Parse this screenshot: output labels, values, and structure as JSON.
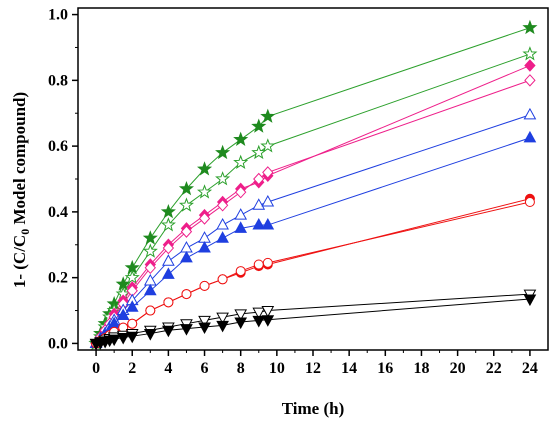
{
  "chart_data": {
    "type": "scatter",
    "xlabel": "Time (h)",
    "ylabel": "1- (C/C",
    "ylabel_sub": "0",
    "ylabel_tail": " Model compound)",
    "xlim": [
      -1,
      25
    ],
    "ylim": [
      -0.02,
      1.02
    ],
    "xticks": [
      0,
      2,
      4,
      6,
      8,
      10,
      12,
      14,
      16,
      18,
      20,
      22,
      24
    ],
    "xtick_labels": [
      "0",
      "2",
      "4",
      "6",
      "8",
      "10",
      "12",
      "14",
      "16",
      "18",
      "20",
      "22",
      "24"
    ],
    "yticks": [
      0.0,
      0.2,
      0.4,
      0.6,
      0.8,
      1.0
    ],
    "ytick_labels": [
      "0.0",
      "0.2",
      "0.4",
      "0.6",
      "0.8",
      "1.0"
    ],
    "grid": false,
    "series": [
      {
        "marker": "star",
        "filled": true,
        "color": "#1f8a1f",
        "line_color": "#2ca02c",
        "x": [
          0,
          0.25,
          0.5,
          0.75,
          1,
          1.5,
          2,
          3,
          4,
          5,
          6,
          7,
          8,
          9,
          9.5,
          24
        ],
        "y": [
          0.0,
          0.03,
          0.06,
          0.09,
          0.12,
          0.18,
          0.23,
          0.32,
          0.4,
          0.47,
          0.53,
          0.58,
          0.62,
          0.66,
          0.69,
          0.96
        ]
      },
      {
        "marker": "star",
        "filled": false,
        "color": "#2ca02c",
        "line_color": "#2ca02c",
        "x": [
          0,
          0.25,
          0.5,
          0.75,
          1,
          1.5,
          2,
          3,
          4,
          5,
          6,
          7,
          8,
          9,
          9.5,
          24
        ],
        "y": [
          0.0,
          0.02,
          0.05,
          0.08,
          0.1,
          0.15,
          0.2,
          0.28,
          0.36,
          0.42,
          0.46,
          0.5,
          0.55,
          0.58,
          0.6,
          0.88
        ]
      },
      {
        "marker": "diamond",
        "filled": true,
        "color": "#ee1f8a",
        "line_color": "#ee1f8a",
        "x": [
          0,
          0.25,
          0.5,
          0.75,
          1,
          1.5,
          2,
          3,
          4,
          5,
          6,
          7,
          8,
          9,
          9.5,
          24
        ],
        "y": [
          0.0,
          0.02,
          0.04,
          0.06,
          0.09,
          0.13,
          0.17,
          0.24,
          0.3,
          0.35,
          0.39,
          0.43,
          0.47,
          0.49,
          0.51,
          0.845
        ]
      },
      {
        "marker": "diamond",
        "filled": false,
        "color": "#ee1f8a",
        "line_color": "#ee1f8a",
        "x": [
          0,
          0.25,
          0.5,
          0.75,
          1,
          1.5,
          2,
          3,
          4,
          5,
          6,
          7,
          8,
          9,
          9.5,
          24
        ],
        "y": [
          0.0,
          0.02,
          0.04,
          0.06,
          0.08,
          0.12,
          0.16,
          0.23,
          0.29,
          0.34,
          0.38,
          0.42,
          0.46,
          0.5,
          0.52,
          0.8
        ]
      },
      {
        "marker": "triangle-up",
        "filled": false,
        "color": "#1f3fe0",
        "line_color": "#1f3fe0",
        "x": [
          0,
          0.25,
          0.5,
          0.75,
          1,
          1.5,
          2,
          3,
          4,
          5,
          6,
          7,
          8,
          9,
          9.5,
          24
        ],
        "y": [
          0.0,
          0.015,
          0.03,
          0.05,
          0.07,
          0.1,
          0.13,
          0.19,
          0.25,
          0.29,
          0.32,
          0.36,
          0.39,
          0.42,
          0.43,
          0.695
        ]
      },
      {
        "marker": "triangle-up",
        "filled": true,
        "color": "#1f3fe0",
        "line_color": "#1f3fe0",
        "x": [
          0,
          0.25,
          0.5,
          0.75,
          1,
          1.5,
          2,
          3,
          4,
          5,
          6,
          7,
          8,
          9,
          9.5,
          24
        ],
        "y": [
          0.0,
          0.01,
          0.025,
          0.04,
          0.06,
          0.085,
          0.11,
          0.16,
          0.21,
          0.26,
          0.29,
          0.32,
          0.35,
          0.36,
          0.36,
          0.625
        ]
      },
      {
        "marker": "circle",
        "filled": true,
        "color": "#ee1111",
        "line_color": "#ee1111",
        "x": [
          0,
          0.25,
          0.5,
          0.75,
          1,
          1.5,
          2,
          3,
          4,
          5,
          6,
          7,
          8,
          9,
          9.5,
          24
        ],
        "y": [
          0.0,
          0.008,
          0.016,
          0.025,
          0.035,
          0.048,
          0.06,
          0.1,
          0.125,
          0.15,
          0.175,
          0.195,
          0.215,
          0.235,
          0.24,
          0.44
        ]
      },
      {
        "marker": "circle",
        "filled": false,
        "color": "#ee1111",
        "line_color": "#ee1111",
        "x": [
          0,
          0.25,
          0.5,
          0.75,
          1,
          1.5,
          2,
          3,
          4,
          5,
          6,
          7,
          8,
          9,
          9.5,
          24
        ],
        "y": [
          0.0,
          0.008,
          0.016,
          0.025,
          0.035,
          0.048,
          0.06,
          0.1,
          0.125,
          0.15,
          0.175,
          0.195,
          0.22,
          0.24,
          0.245,
          0.43
        ]
      },
      {
        "marker": "triangle-down",
        "filled": false,
        "color": "#000000",
        "line_color": "#000000",
        "x": [
          0,
          0.25,
          0.5,
          0.75,
          1,
          1.5,
          2,
          3,
          4,
          5,
          6,
          7,
          8,
          9,
          9.5,
          24
        ],
        "y": [
          0.0,
          0.005,
          0.01,
          0.015,
          0.02,
          0.025,
          0.03,
          0.04,
          0.05,
          0.06,
          0.07,
          0.08,
          0.09,
          0.095,
          0.1,
          0.15
        ]
      },
      {
        "marker": "triangle-down",
        "filled": true,
        "color": "#000000",
        "line_color": "#000000",
        "x": [
          0,
          0.25,
          0.5,
          0.75,
          1,
          1.5,
          2,
          3,
          4,
          5,
          6,
          7,
          8,
          9,
          9.5,
          24
        ],
        "y": [
          0.0,
          0.003,
          0.006,
          0.01,
          0.013,
          0.018,
          0.022,
          0.03,
          0.04,
          0.045,
          0.05,
          0.055,
          0.065,
          0.07,
          0.072,
          0.135
        ]
      }
    ]
  }
}
